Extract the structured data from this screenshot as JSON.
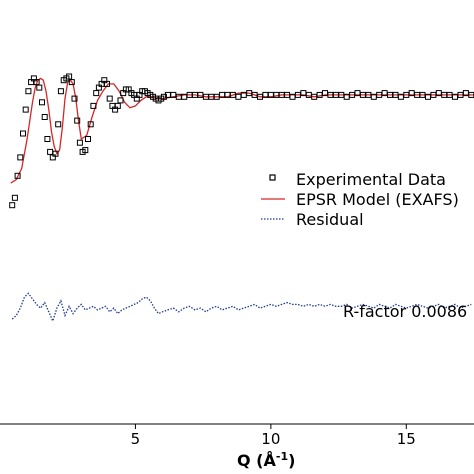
{
  "chart_data": {
    "type": "line",
    "title": "",
    "xlabel": "Q (Å",
    "xlabel_sup": "-1",
    "xlabel_close": ")",
    "ylabel": "",
    "xlim": [
      0,
      17.5
    ],
    "ylim": [
      -1.3,
      0.55
    ],
    "xticks": [
      5,
      10,
      15
    ],
    "xtick_labels": [
      "5",
      "10",
      "15"
    ],
    "grid": false,
    "legend_position": "right",
    "annotation": "R-factor 0.0086",
    "series": [
      {
        "name": "Experimental Data",
        "style": "open-square-markers",
        "color": "#000000",
        "x": [
          0.45,
          0.55,
          0.65,
          0.75,
          0.85,
          0.95,
          1.05,
          1.15,
          1.25,
          1.35,
          1.45,
          1.55,
          1.65,
          1.75,
          1.85,
          1.95,
          2.05,
          2.15,
          2.25,
          2.35,
          2.45,
          2.55,
          2.65,
          2.75,
          2.85,
          2.95,
          3.05,
          3.15,
          3.25,
          3.35,
          3.45,
          3.55,
          3.65,
          3.75,
          3.85,
          3.95,
          4.05,
          4.15,
          4.25,
          4.35,
          4.45,
          4.55,
          4.65,
          4.75,
          4.85,
          4.95,
          5.05,
          5.15,
          5.25,
          5.35,
          5.45,
          5.55,
          5.65,
          5.75,
          5.85,
          5.95,
          6.05,
          6.2,
          6.4,
          6.6,
          6.8,
          7.0,
          7.2,
          7.4,
          7.6,
          7.8,
          8.0,
          8.2,
          8.4,
          8.6,
          8.8,
          9.0,
          9.2,
          9.4,
          9.6,
          9.8,
          10.0,
          10.2,
          10.4,
          10.6,
          10.8,
          11.0,
          11.2,
          11.4,
          11.6,
          11.8,
          12.0,
          12.2,
          12.4,
          12.6,
          12.8,
          13.0,
          13.2,
          13.4,
          13.6,
          13.8,
          14.0,
          14.2,
          14.4,
          14.6,
          14.8,
          15.0,
          15.2,
          15.4,
          15.6,
          15.8,
          16.0,
          16.2,
          16.4,
          16.6,
          16.8,
          17.0,
          17.2,
          17.4
        ],
        "y": [
          -0.24,
          -0.2,
          -0.08,
          0.02,
          0.15,
          0.28,
          0.38,
          0.43,
          0.45,
          0.43,
          0.4,
          0.32,
          0.24,
          0.12,
          0.05,
          0.02,
          0.04,
          0.2,
          0.38,
          0.44,
          0.45,
          0.46,
          0.43,
          0.34,
          0.22,
          0.1,
          0.05,
          0.06,
          0.12,
          0.2,
          0.3,
          0.37,
          0.4,
          0.42,
          0.44,
          0.42,
          0.34,
          0.3,
          0.28,
          0.3,
          0.33,
          0.37,
          0.39,
          0.39,
          0.37,
          0.36,
          0.34,
          0.36,
          0.38,
          0.38,
          0.37,
          0.36,
          0.35,
          0.34,
          0.33,
          0.34,
          0.35,
          0.36,
          0.36,
          0.35,
          0.35,
          0.36,
          0.36,
          0.36,
          0.35,
          0.35,
          0.35,
          0.36,
          0.36,
          0.36,
          0.35,
          0.36,
          0.37,
          0.36,
          0.35,
          0.36,
          0.36,
          0.36,
          0.36,
          0.36,
          0.35,
          0.36,
          0.37,
          0.36,
          0.35,
          0.36,
          0.37,
          0.36,
          0.36,
          0.36,
          0.35,
          0.36,
          0.37,
          0.36,
          0.36,
          0.35,
          0.36,
          0.37,
          0.36,
          0.36,
          0.35,
          0.36,
          0.37,
          0.36,
          0.36,
          0.35,
          0.36,
          0.37,
          0.36,
          0.36,
          0.35,
          0.36,
          0.37,
          0.36
        ]
      },
      {
        "name": "EPSR Model (EXAFS)",
        "style": "line",
        "color": "#d62728",
        "x": [
          0.4,
          0.6,
          0.8,
          1.0,
          1.1,
          1.2,
          1.3,
          1.4,
          1.5,
          1.6,
          1.7,
          1.8,
          1.9,
          2.0,
          2.1,
          2.2,
          2.3,
          2.4,
          2.5,
          2.6,
          2.7,
          2.8,
          2.9,
          3.0,
          3.2,
          3.4,
          3.6,
          3.8,
          4.0,
          4.2,
          4.4,
          4.6,
          4.8,
          5.0,
          5.2,
          5.4,
          5.6,
          5.8,
          6.0,
          6.4,
          6.8,
          7.2,
          7.6,
          8.0,
          8.4,
          8.8,
          9.2,
          9.6,
          10.0,
          10.4,
          10.8,
          11.2,
          11.6,
          12.0,
          12.4,
          12.8,
          13.2,
          13.6,
          14.0,
          14.4,
          14.8,
          15.2,
          15.6,
          16.0,
          16.4,
          16.8,
          17.2,
          17.5
        ],
        "y": [
          -0.12,
          -0.1,
          -0.04,
          0.12,
          0.22,
          0.32,
          0.4,
          0.44,
          0.45,
          0.44,
          0.38,
          0.28,
          0.16,
          0.08,
          0.04,
          0.06,
          0.18,
          0.34,
          0.43,
          0.44,
          0.42,
          0.34,
          0.22,
          0.12,
          0.14,
          0.24,
          0.33,
          0.38,
          0.42,
          0.42,
          0.38,
          0.32,
          0.29,
          0.3,
          0.33,
          0.35,
          0.35,
          0.34,
          0.34,
          0.35,
          0.36,
          0.36,
          0.35,
          0.35,
          0.35,
          0.37,
          0.37,
          0.35,
          0.35,
          0.36,
          0.36,
          0.36,
          0.35,
          0.36,
          0.36,
          0.36,
          0.36,
          0.36,
          0.36,
          0.36,
          0.36,
          0.36,
          0.36,
          0.36,
          0.36,
          0.36,
          0.36,
          0.36
        ]
      },
      {
        "name": "Residual",
        "style": "dotted-line",
        "color": "#1f3a93",
        "x": [
          0.45,
          0.6,
          0.75,
          0.9,
          1.05,
          1.2,
          1.35,
          1.5,
          1.65,
          1.8,
          1.95,
          2.1,
          2.25,
          2.4,
          2.55,
          2.7,
          2.85,
          3.0,
          3.15,
          3.3,
          3.45,
          3.6,
          3.75,
          3.9,
          4.05,
          4.2,
          4.35,
          4.5,
          4.65,
          4.8,
          4.95,
          5.1,
          5.25,
          5.4,
          5.55,
          5.7,
          5.85,
          6.0,
          6.2,
          6.4,
          6.6,
          6.8,
          7.0,
          7.2,
          7.4,
          7.6,
          7.8,
          8.0,
          8.2,
          8.4,
          8.6,
          8.8,
          9.0,
          9.2,
          9.4,
          9.6,
          9.8,
          10.0,
          10.2,
          10.4,
          10.6,
          10.8,
          11.0,
          11.2,
          11.4,
          11.6,
          11.8,
          12.0,
          12.2,
          12.4,
          12.6,
          12.8,
          13.0,
          13.2,
          13.4,
          13.6,
          13.8,
          14.0,
          14.2,
          14.4,
          14.6,
          14.8,
          15.0,
          15.2,
          15.4,
          15.6,
          15.8,
          16.0,
          16.2,
          16.4,
          16.6,
          16.8,
          17.0,
          17.2,
          17.4
        ],
        "y": [
          -0.86,
          -0.84,
          -0.8,
          -0.74,
          -0.72,
          -0.75,
          -0.78,
          -0.8,
          -0.77,
          -0.82,
          -0.87,
          -0.8,
          -0.76,
          -0.84,
          -0.79,
          -0.83,
          -0.8,
          -0.78,
          -0.81,
          -0.8,
          -0.79,
          -0.81,
          -0.8,
          -0.79,
          -0.82,
          -0.8,
          -0.83,
          -0.81,
          -0.8,
          -0.79,
          -0.78,
          -0.77,
          -0.75,
          -0.74,
          -0.76,
          -0.8,
          -0.83,
          -0.82,
          -0.81,
          -0.8,
          -0.82,
          -0.8,
          -0.79,
          -0.81,
          -0.8,
          -0.82,
          -0.8,
          -0.79,
          -0.81,
          -0.8,
          -0.79,
          -0.81,
          -0.8,
          -0.79,
          -0.78,
          -0.8,
          -0.79,
          -0.78,
          -0.79,
          -0.78,
          -0.77,
          -0.78,
          -0.78,
          -0.79,
          -0.78,
          -0.79,
          -0.78,
          -0.79,
          -0.78,
          -0.79,
          -0.79,
          -0.78,
          -0.8,
          -0.79,
          -0.78,
          -0.79,
          -0.8,
          -0.78,
          -0.79,
          -0.8,
          -0.78,
          -0.79,
          -0.8,
          -0.79,
          -0.78,
          -0.79,
          -0.8,
          -0.79,
          -0.78,
          -0.8,
          -0.79,
          -0.78,
          -0.8,
          -0.79,
          -0.78
        ]
      }
    ]
  }
}
